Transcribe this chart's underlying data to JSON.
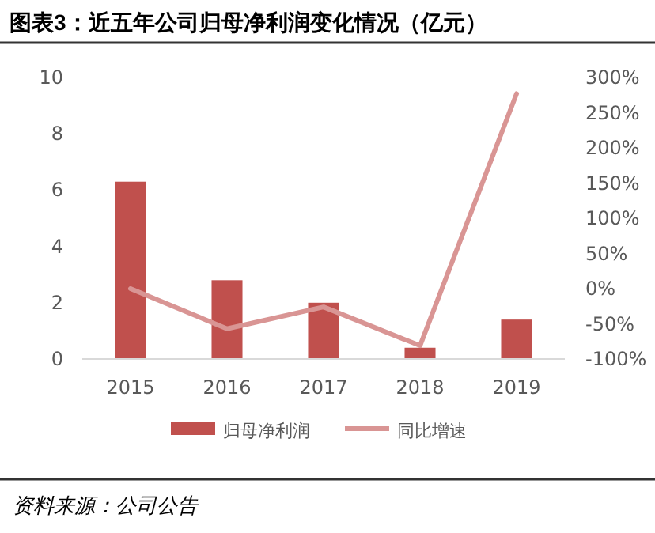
{
  "chart_data": {
    "type": "bar",
    "title": "图表3：近五年公司归母净利润变化情况（亿元）",
    "categories": [
      "2015",
      "2016",
      "2017",
      "2018",
      "2019"
    ],
    "series": [
      {
        "name": "归母净利润",
        "color": "#c0504d",
        "values": [
          6.3,
          2.8,
          2.0,
          0.4,
          1.4
        ]
      },
      {
        "name": "同比增速",
        "type": "line",
        "axis": "y2",
        "color": "#d99594",
        "values": [
          0,
          -57,
          -26,
          -81,
          277
        ]
      }
    ],
    "ylim": [
      0,
      10
    ],
    "yticks": [
      0,
      2,
      4,
      6,
      8,
      10
    ],
    "y2lim": [
      -100,
      300
    ],
    "y2ticks": [
      {
        "value": -100,
        "label": "-100%"
      },
      {
        "value": -50,
        "label": "-50%"
      },
      {
        "value": 0,
        "label": "0%"
      },
      {
        "value": 50,
        "label": "50%"
      },
      {
        "value": 100,
        "label": "100%"
      },
      {
        "value": 150,
        "label": "150%"
      },
      {
        "value": 200,
        "label": "200%"
      },
      {
        "value": 250,
        "label": "250%"
      },
      {
        "value": 300,
        "label": "300%"
      }
    ],
    "legend": "bottom",
    "marker": "none",
    "annotations": [
      "资料来源：公司公告"
    ]
  }
}
